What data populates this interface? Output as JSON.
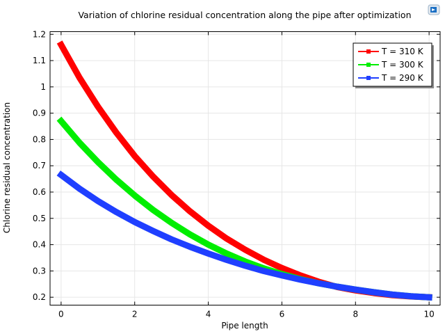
{
  "chart_data": {
    "type": "line",
    "title": "Variation of chlorine residual concentration along the pipe after optimization",
    "xlabel": "Pipe length",
    "ylabel": "Chlorine residual concentration",
    "xlim": [
      -0.3,
      10.3
    ],
    "ylim": [
      0.17,
      1.21
    ],
    "xticks": [
      0,
      2,
      4,
      6,
      8,
      10
    ],
    "yticks": [
      0.2,
      0.3,
      0.4,
      0.5,
      0.6,
      0.7,
      0.8,
      0.9,
      1,
      1.1,
      1.2
    ],
    "grid": true,
    "legend": "top-right",
    "x": [
      0,
      0.5,
      1,
      1.5,
      2,
      2.5,
      3,
      3.5,
      4,
      4.5,
      5,
      5.5,
      6,
      6.5,
      7,
      7.5,
      8,
      8.5,
      9,
      9.5,
      10
    ],
    "series": [
      {
        "name": "T = 310 K",
        "color": "#ff0000",
        "values": [
          1.16,
          1.035,
          0.925,
          0.826,
          0.737,
          0.659,
          0.589,
          0.527,
          0.472,
          0.423,
          0.381,
          0.343,
          0.311,
          0.283,
          0.259,
          0.239,
          0.226,
          0.216,
          0.208,
          0.203,
          0.2
        ]
      },
      {
        "name": "T = 300 K",
        "color": "#00ee00",
        "values": [
          0.87,
          0.788,
          0.714,
          0.647,
          0.587,
          0.532,
          0.483,
          0.439,
          0.4,
          0.366,
          0.336,
          0.31,
          0.288,
          0.269,
          0.253,
          0.24,
          0.229,
          0.219,
          0.21,
          0.204,
          0.2
        ]
      },
      {
        "name": "T = 290 K",
        "color": "#1f3fff",
        "values": [
          0.665,
          0.613,
          0.566,
          0.524,
          0.486,
          0.452,
          0.42,
          0.392,
          0.366,
          0.342,
          0.32,
          0.3,
          0.283,
          0.267,
          0.253,
          0.24,
          0.229,
          0.219,
          0.21,
          0.204,
          0.2
        ]
      }
    ]
  }
}
